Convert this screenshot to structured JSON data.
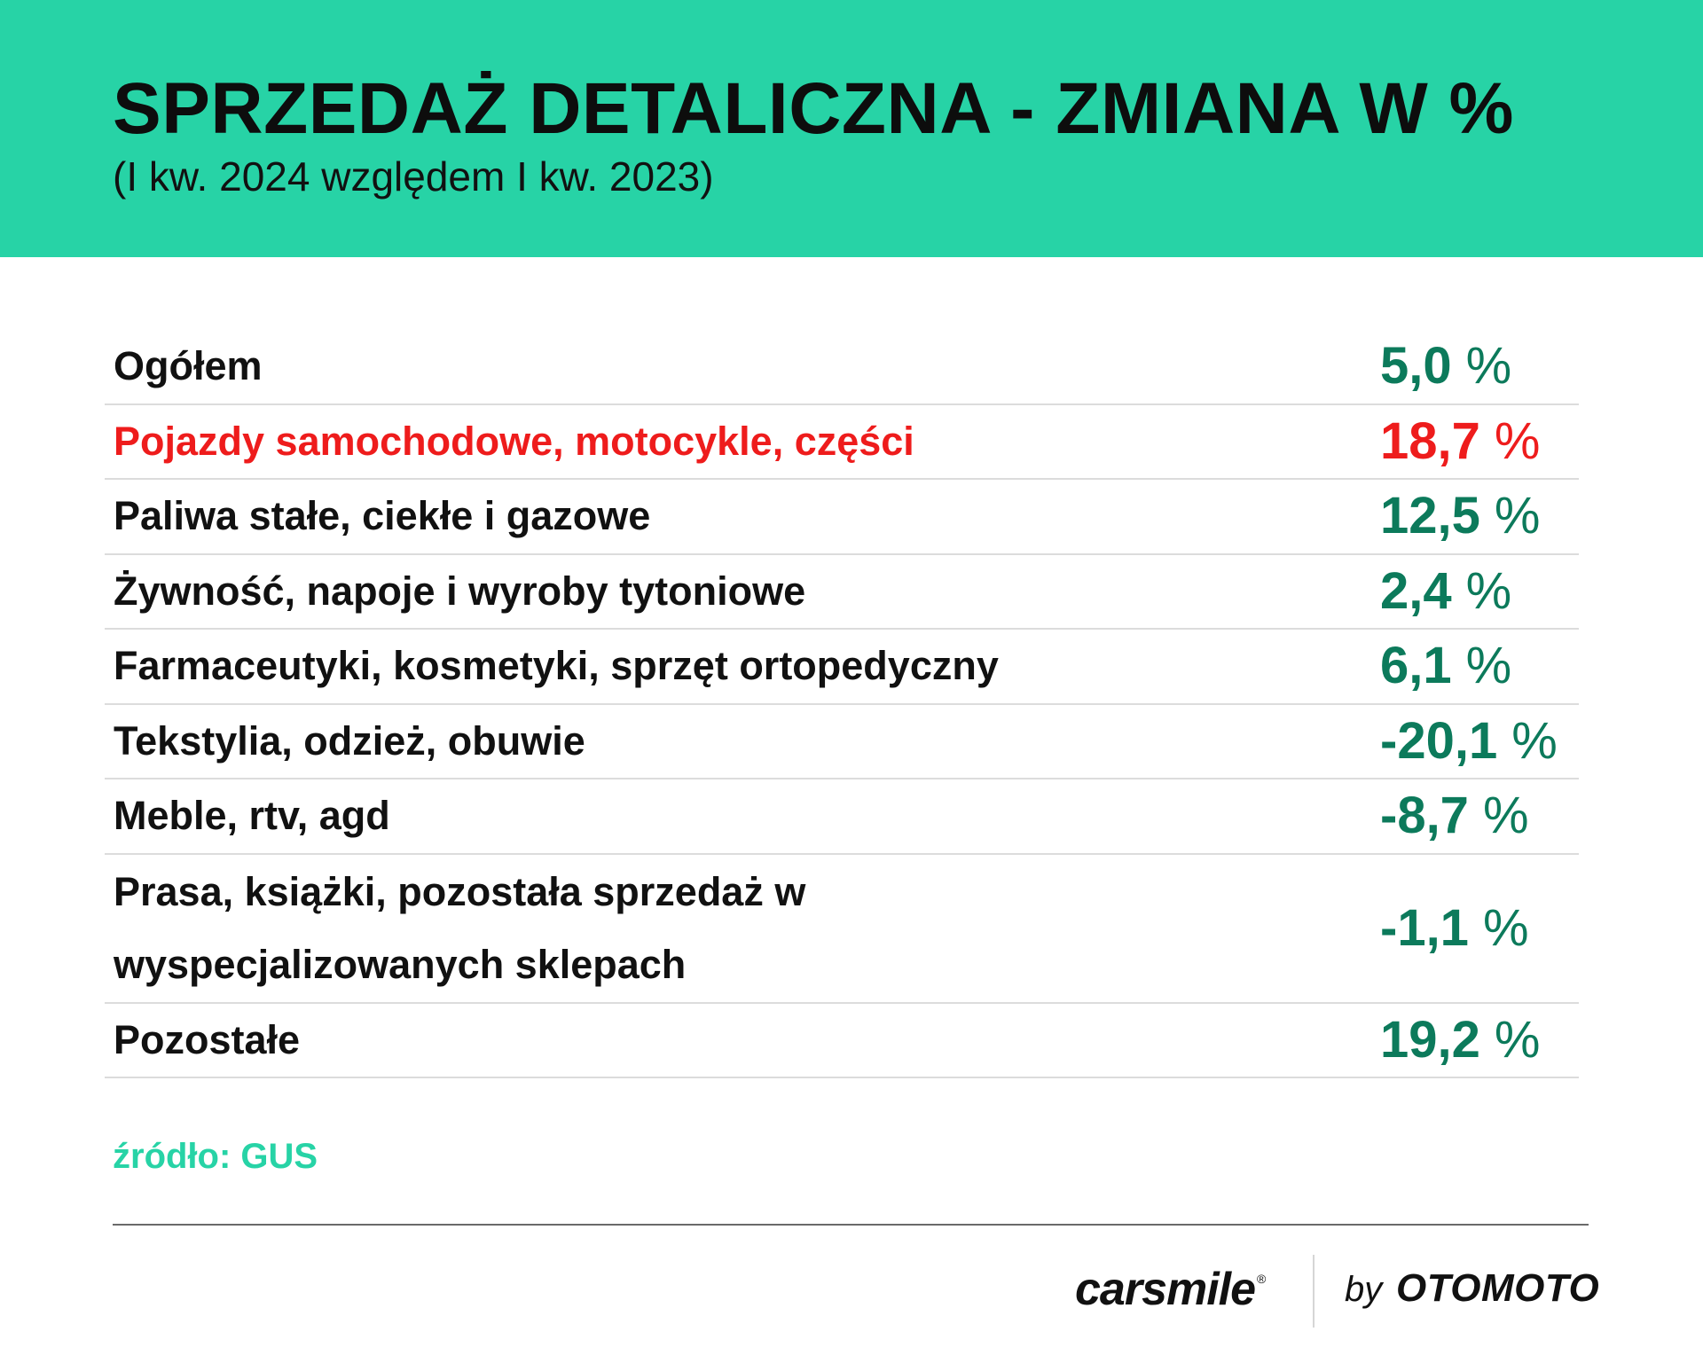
{
  "chart_data": {
    "type": "table",
    "title": "SPRZEDAŻ DETALICZNA - ZMIANA W %",
    "subtitle": "(I kw. 2024 względem I kw. 2023)",
    "unit": "%",
    "rows": [
      {
        "label": "Ogółem",
        "value": "5,0",
        "highlight": false
      },
      {
        "label": "Pojazdy samochodowe, motocykle, części",
        "value": "18,7",
        "highlight": true
      },
      {
        "label": "Paliwa stałe, ciekłe i gazowe",
        "value": "12,5",
        "highlight": false
      },
      {
        "label": "Żywność, napoje i wyroby tytoniowe",
        "value": "2,4",
        "highlight": false
      },
      {
        "label": "Farmaceutyki, kosmetyki, sprzęt ortopedyczny",
        "value": "6,1",
        "highlight": false
      },
      {
        "label": "Tekstylia, odzież, obuwie",
        "value": "-20,1",
        "highlight": false
      },
      {
        "label": "Meble, rtv, agd",
        "value": "-8,7",
        "highlight": false
      },
      {
        "label": "Prasa, książki, pozostała sprzedaż w wyspecjalizowanych sklepach",
        "value": "-1,1",
        "highlight": false,
        "tall": true
      },
      {
        "label": "Pozostałe",
        "value": "19,2",
        "highlight": false
      }
    ],
    "source": "źródło: GUS"
  },
  "colors": {
    "header_bg": "#27d3a6",
    "value_green": "#0c7a5b",
    "highlight_red": "#ee1c1c",
    "source_green": "#27d3a6"
  },
  "footer": {
    "brand": "carsmile",
    "brand_mark": "®",
    "by": "by",
    "partner": "OTOMOTO"
  }
}
